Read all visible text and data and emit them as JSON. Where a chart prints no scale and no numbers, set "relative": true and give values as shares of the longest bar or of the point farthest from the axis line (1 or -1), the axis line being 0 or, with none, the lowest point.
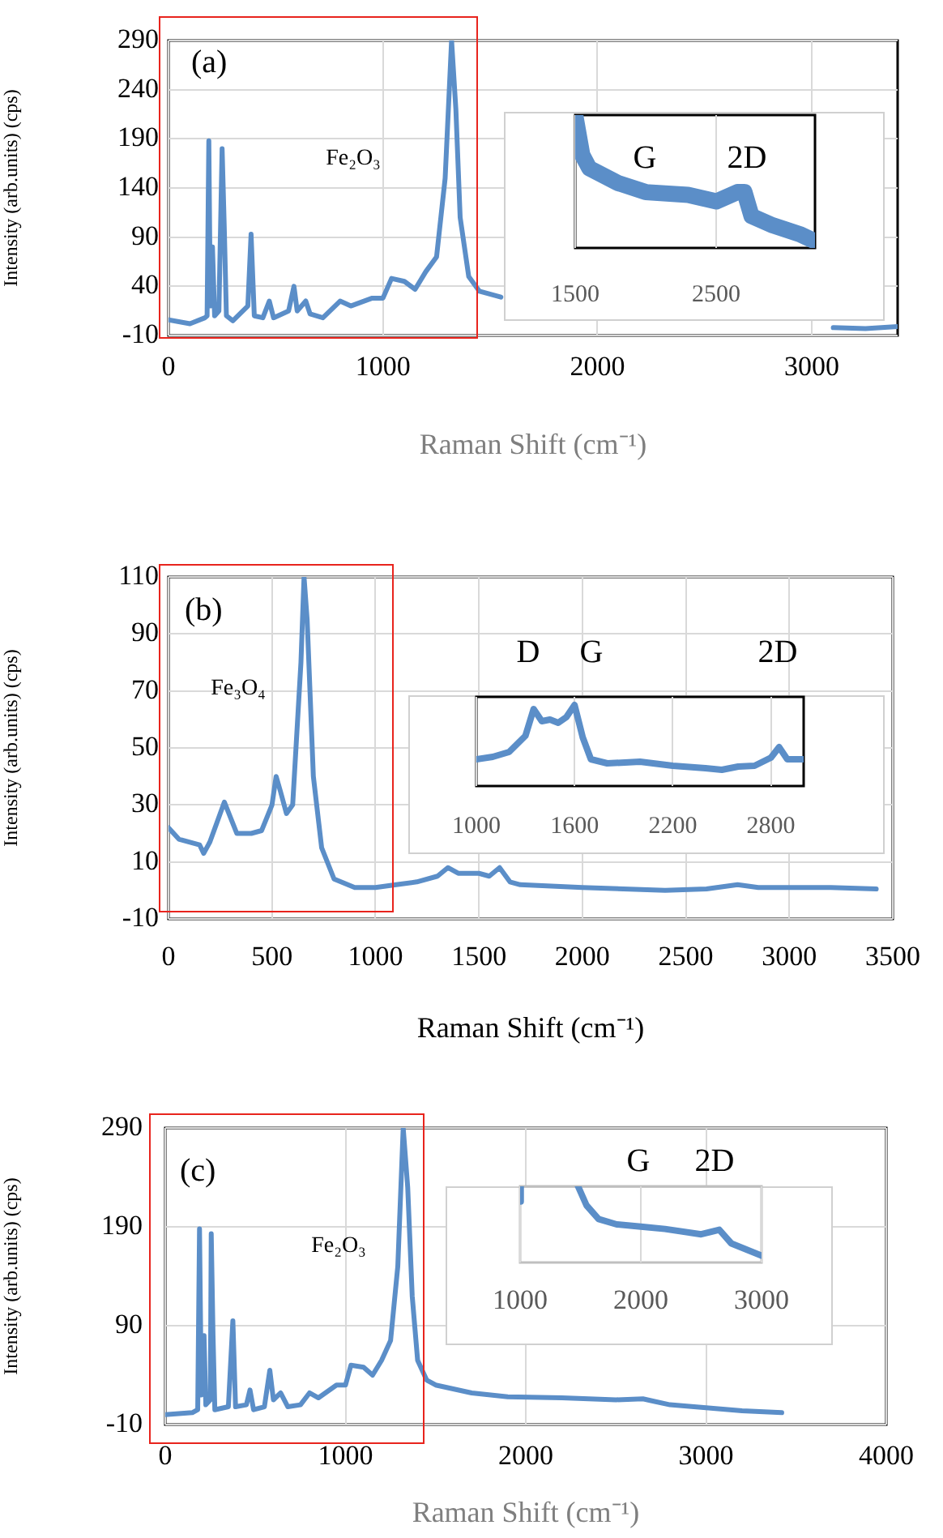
{
  "chart_data": [
    {
      "type": "line",
      "title": null,
      "xlabel": "Raman Shift (cm⁻¹)",
      "ylabel": "Intensity (arb.units) (cps)",
      "annotations": [
        "(a)",
        "Fe₂O₃"
      ],
      "xlim": [
        0,
        3400
      ],
      "xticks": [
        0,
        1000,
        2000,
        3000
      ],
      "ylim": [
        -10,
        290
      ],
      "yticks": [
        -10,
        40,
        90,
        140,
        190,
        240,
        290
      ],
      "grid": true,
      "legend": false,
      "marker": "none",
      "series": [
        {
          "color": "#5b8ec8",
          "x": [
            0,
            100,
            170,
            180,
            188,
            195,
            205,
            215,
            235,
            250,
            260,
            270,
            300,
            370,
            385,
            400,
            440,
            470,
            490,
            560,
            585,
            600,
            640,
            660,
            720,
            800,
            850,
            950,
            1000,
            1040,
            1100,
            1150,
            1200,
            1250,
            1290,
            1320,
            1340,
            1360,
            1400,
            1450,
            1550,
            1600,
            3050,
            3100,
            3250,
            3400
          ],
          "values": [
            6,
            2,
            8,
            10,
            188,
            20,
            80,
            10,
            15,
            180,
            100,
            10,
            5,
            20,
            93,
            10,
            8,
            25,
            8,
            15,
            40,
            15,
            25,
            12,
            8,
            25,
            20,
            28,
            28,
            48,
            45,
            37,
            55,
            70,
            150,
            290,
            220,
            110,
            50,
            35,
            29,
            null,
            null,
            -2,
            -3,
            -1
          ]
        }
      ]
    },
    {
      "type": "line",
      "relative": true,
      "annotations": [
        "G",
        "2D"
      ],
      "xlim": [
        1500,
        3200
      ],
      "xticks": [
        1500,
        2500
      ],
      "grid": "x",
      "legend": false,
      "marker": "none",
      "series": [
        {
          "color": "#5b8ec8",
          "x": [
            1500,
            1550,
            1600,
            1800,
            2000,
            2300,
            2500,
            2650,
            2700,
            2750,
            2900,
            3100,
            3200
          ],
          "values": [
            1.0,
            0.7,
            0.6,
            0.49,
            0.42,
            0.4,
            0.35,
            0.42,
            0.42,
            0.24,
            0.17,
            0.1,
            0.05
          ]
        }
      ]
    },
    {
      "type": "line",
      "xlabel": "Raman Shift (cm⁻¹)",
      "ylabel": "Intensity (arb.units) (cps)",
      "annotations": [
        "(b)",
        "Fe₃O₄"
      ],
      "xlim": [
        0,
        3500
      ],
      "xticks": [
        0,
        500,
        1000,
        1500,
        2000,
        2500,
        3000,
        3500
      ],
      "ylim": [
        -10,
        110
      ],
      "yticks": [
        -10,
        10,
        30,
        50,
        70,
        90,
        110
      ],
      "grid": true,
      "legend": false,
      "marker": "none",
      "series": [
        {
          "color": "#5b8ec8",
          "x": [
            0,
            50,
            150,
            170,
            200,
            270,
            330,
            400,
            450,
            500,
            520,
            540,
            570,
            600,
            640,
            655,
            670,
            700,
            740,
            800,
            900,
            1000,
            1100,
            1200,
            1300,
            1350,
            1400,
            1500,
            1550,
            1600,
            1650,
            1700,
            2000,
            2400,
            2600,
            2750,
            2850,
            3000,
            3200,
            3420
          ],
          "values": [
            22,
            18,
            16,
            13,
            17,
            31,
            20,
            20,
            21,
            30,
            40,
            35,
            27,
            30,
            80,
            110,
            95,
            40,
            15,
            4,
            1,
            1,
            2,
            3,
            5,
            8,
            6,
            6,
            5,
            8,
            3,
            2,
            1,
            0,
            0.5,
            2,
            1,
            1,
            1,
            0.5
          ]
        }
      ]
    },
    {
      "type": "line",
      "relative": true,
      "annotations": [
        "D",
        "G",
        "2D"
      ],
      "xlim": [
        1000,
        3000
      ],
      "xticks": [
        1000,
        1600,
        2200,
        2800
      ],
      "grid": "x",
      "legend": false,
      "marker": "none",
      "series": [
        {
          "color": "#5b8ec8",
          "x": [
            1000,
            1100,
            1200,
            1300,
            1350,
            1400,
            1450,
            1500,
            1550,
            1600,
            1650,
            1700,
            1800,
            2000,
            2200,
            2400,
            2500,
            2600,
            2700,
            2800,
            2850,
            2900,
            3000
          ],
          "values": [
            0.33,
            0.36,
            0.42,
            0.62,
            0.95,
            0.8,
            0.82,
            0.78,
            0.85,
            1.0,
            0.6,
            0.33,
            0.28,
            0.3,
            0.25,
            0.22,
            0.2,
            0.24,
            0.25,
            0.35,
            0.48,
            0.33,
            0.33
          ]
        }
      ]
    },
    {
      "type": "line",
      "xlabel": "Raman Shift (cm⁻¹)",
      "ylabel": "Intensity (arb.units) (cps)",
      "annotations": [
        "(c)",
        "Fe₂O₃"
      ],
      "xlim": [
        0,
        4000
      ],
      "xticks": [
        0,
        1000,
        2000,
        3000,
        4000
      ],
      "ylim": [
        -10,
        290
      ],
      "yticks": [
        -10,
        90,
        190,
        290
      ],
      "grid": true,
      "legend": false,
      "marker": "none",
      "series": [
        {
          "color": "#5b8ec8",
          "x": [
            0,
            150,
            180,
            190,
            200,
            215,
            225,
            250,
            255,
            265,
            275,
            350,
            375,
            390,
            450,
            470,
            490,
            550,
            580,
            600,
            640,
            680,
            750,
            800,
            850,
            950,
            1000,
            1030,
            1100,
            1150,
            1200,
            1250,
            1290,
            1320,
            1345,
            1370,
            1400,
            1450,
            1500,
            1700,
            1900,
            2200,
            2500,
            2650,
            2700,
            2800,
            3000,
            3200,
            3420
          ],
          "values": [
            0,
            2,
            5,
            188,
            20,
            80,
            10,
            15,
            183,
            80,
            5,
            8,
            95,
            8,
            10,
            25,
            5,
            8,
            45,
            15,
            22,
            8,
            10,
            22,
            17,
            30,
            30,
            50,
            48,
            40,
            55,
            75,
            150,
            290,
            230,
            120,
            55,
            35,
            30,
            22,
            18,
            17,
            15,
            16,
            14,
            10,
            7,
            4,
            2
          ]
        }
      ]
    },
    {
      "type": "line",
      "relative": true,
      "annotations": [
        "G",
        "2D"
      ],
      "xlim": [
        1000,
        3000
      ],
      "xticks": [
        1000,
        2000,
        3000
      ],
      "grid": "x",
      "legend": false,
      "marker": "none",
      "series": [
        {
          "color": "#5b8ec8",
          "x": [
            1000,
            1005,
            1010,
            1480,
            1550,
            1650,
            1800,
            2000,
            2200,
            2500,
            2650,
            2750,
            3000
          ],
          "values": [
            0.8,
            1.0,
            null,
            1.0,
            0.75,
            0.57,
            0.5,
            0.47,
            0.44,
            0.37,
            0.43,
            0.25,
            0.09
          ]
        }
      ]
    }
  ]
}
